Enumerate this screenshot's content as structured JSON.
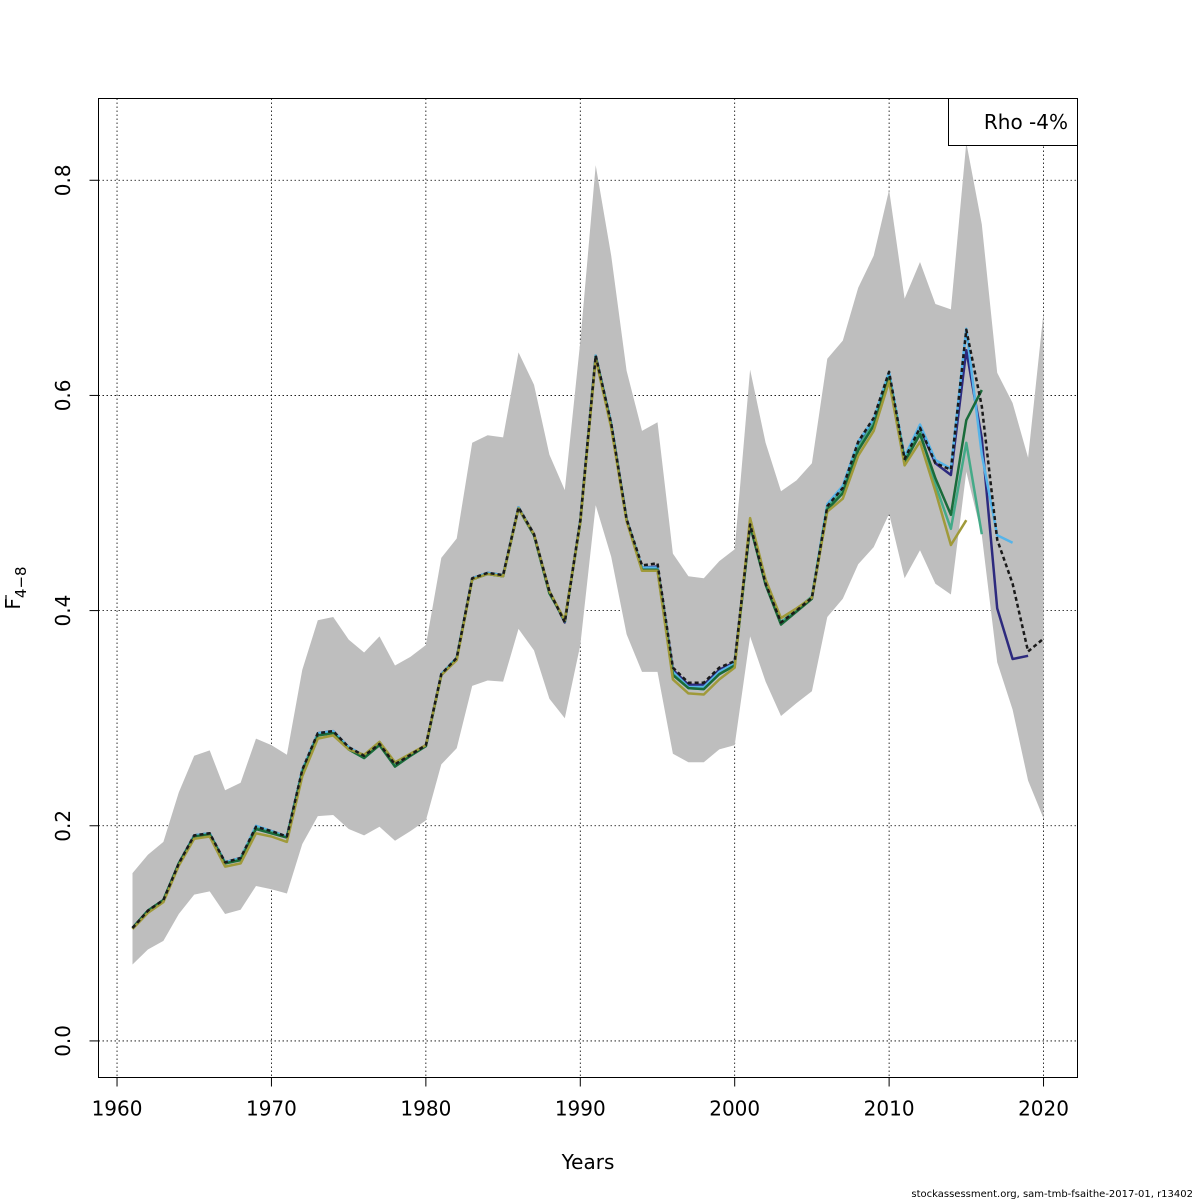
{
  "chart_data": {
    "type": "line",
    "xlabel": "Years",
    "ylabel_main": "F",
    "ylabel_sub": "4−8",
    "xlim": [
      1958.8,
      2022.2
    ],
    "ylim": [
      -0.034,
      0.876
    ],
    "x_ticks": [
      1960,
      1970,
      1980,
      1990,
      2000,
      2010,
      2020
    ],
    "x_tick_labels": [
      "1960",
      "1970",
      "1980",
      "1990",
      "2000",
      "2010",
      "2020"
    ],
    "y_ticks": [
      0.0,
      0.2,
      0.4,
      0.6,
      0.8
    ],
    "y_tick_labels": [
      "0.0",
      "0.2",
      "0.4",
      "0.6",
      "0.8"
    ],
    "grid": true,
    "legend": {
      "position": "top-right",
      "text": "Rho -4%"
    },
    "footer": "stockassessment.org, sam-tmb-fsaithe-2017-01, r13402",
    "confidence_band": {
      "color": "#bebebe",
      "x": [
        1961,
        1962,
        1963,
        1964,
        1965,
        1966,
        1967,
        1968,
        1969,
        1970,
        1971,
        1972,
        1973,
        1974,
        1975,
        1976,
        1977,
        1978,
        1979,
        1980,
        1981,
        1982,
        1983,
        1984,
        1985,
        1986,
        1987,
        1988,
        1989,
        1990,
        1991,
        1992,
        1993,
        1994,
        1995,
        1996,
        1997,
        1998,
        1999,
        2000,
        2001,
        2002,
        2003,
        2004,
        2005,
        2006,
        2007,
        2008,
        2009,
        2010,
        2011,
        2012,
        2013,
        2014,
        2015,
        2016,
        2017,
        2018,
        2019,
        2020
      ],
      "upper": [
        0.156,
        0.173,
        0.185,
        0.231,
        0.265,
        0.27,
        0.233,
        0.24,
        0.281,
        0.275,
        0.266,
        0.345,
        0.391,
        0.394,
        0.373,
        0.361,
        0.376,
        0.349,
        0.357,
        0.368,
        0.449,
        0.467,
        0.556,
        0.563,
        0.561,
        0.64,
        0.61,
        0.545,
        0.512,
        0.65,
        0.814,
        0.73,
        0.623,
        0.567,
        0.575,
        0.453,
        0.432,
        0.43,
        0.446,
        0.457,
        0.624,
        0.556,
        0.511,
        0.521,
        0.537,
        0.634,
        0.651,
        0.7,
        0.73,
        0.791,
        0.69,
        0.724,
        0.685,
        0.68,
        0.835,
        0.759,
        0.621,
        0.593,
        0.542,
        0.677
      ],
      "lower": [
        0.071,
        0.085,
        0.093,
        0.118,
        0.136,
        0.139,
        0.118,
        0.122,
        0.144,
        0.141,
        0.137,
        0.183,
        0.209,
        0.21,
        0.197,
        0.191,
        0.199,
        0.186,
        0.195,
        0.205,
        0.257,
        0.272,
        0.33,
        0.335,
        0.334,
        0.383,
        0.363,
        0.318,
        0.3,
        0.368,
        0.498,
        0.45,
        0.378,
        0.343,
        0.343,
        0.267,
        0.259,
        0.259,
        0.271,
        0.275,
        0.376,
        0.334,
        0.302,
        0.314,
        0.325,
        0.394,
        0.411,
        0.443,
        0.459,
        0.49,
        0.43,
        0.456,
        0.425,
        0.415,
        0.529,
        0.47,
        0.352,
        0.308,
        0.242,
        0.207
      ]
    },
    "series": [
      {
        "color": "#2d2a7e",
        "dash": false,
        "width": 2.5,
        "x": [
          1961,
          1962,
          1963,
          1964,
          1965,
          1966,
          1967,
          1968,
          1969,
          1970,
          1971,
          1972,
          1973,
          1974,
          1975,
          1976,
          1977,
          1978,
          1979,
          1980,
          1981,
          1982,
          1983,
          1984,
          1985,
          1986,
          1987,
          1988,
          1989,
          1990,
          1991,
          1992,
          1993,
          1994,
          1995,
          1996,
          1997,
          1998,
          1999,
          2000,
          2001,
          2002,
          2003,
          2004,
          2005,
          2006,
          2007,
          2008,
          2009,
          2010,
          2011,
          2012,
          2013,
          2014,
          2015,
          2016,
          2017,
          2018,
          2019
        ],
        "y": [
          0.105,
          0.121,
          0.131,
          0.165,
          0.191,
          0.193,
          0.166,
          0.17,
          0.199,
          0.195,
          0.19,
          0.252,
          0.286,
          0.288,
          0.273,
          0.265,
          0.276,
          0.257,
          0.266,
          0.275,
          0.341,
          0.356,
          0.43,
          0.435,
          0.433,
          0.496,
          0.471,
          0.418,
          0.389,
          0.484,
          0.637,
          0.574,
          0.485,
          0.44,
          0.441,
          0.345,
          0.331,
          0.331,
          0.345,
          0.352,
          0.48,
          0.425,
          0.389,
          0.4,
          0.412,
          0.497,
          0.514,
          0.555,
          0.576,
          0.62,
          0.541,
          0.57,
          0.537,
          0.526,
          0.642,
          0.56,
          0.402,
          0.355,
          0.358
        ]
      },
      {
        "color": "#56b4e9",
        "dash": false,
        "width": 2.5,
        "x": [
          1961,
          1962,
          1963,
          1964,
          1965,
          1966,
          1967,
          1968,
          1969,
          1970,
          1971,
          1972,
          1973,
          1974,
          1975,
          1976,
          1977,
          1978,
          1979,
          1980,
          1981,
          1982,
          1983,
          1984,
          1985,
          1986,
          1987,
          1988,
          1989,
          1990,
          1991,
          1992,
          1993,
          1994,
          1995,
          1996,
          1997,
          1998,
          1999,
          2000,
          2001,
          2002,
          2003,
          2004,
          2005,
          2006,
          2007,
          2008,
          2009,
          2010,
          2011,
          2012,
          2013,
          2014,
          2015,
          2016,
          2017,
          2018
        ],
        "y": [
          0.105,
          0.121,
          0.131,
          0.165,
          0.191,
          0.193,
          0.166,
          0.17,
          0.2,
          0.195,
          0.19,
          0.252,
          0.286,
          0.288,
          0.273,
          0.265,
          0.276,
          0.257,
          0.266,
          0.275,
          0.341,
          0.356,
          0.43,
          0.435,
          0.433,
          0.496,
          0.471,
          0.418,
          0.39,
          0.484,
          0.637,
          0.574,
          0.485,
          0.44,
          0.44,
          0.343,
          0.329,
          0.329,
          0.343,
          0.351,
          0.481,
          0.426,
          0.389,
          0.4,
          0.413,
          0.499,
          0.516,
          0.557,
          0.578,
          0.622,
          0.543,
          0.573,
          0.54,
          0.532,
          0.662,
          0.545,
          0.47,
          0.463
        ]
      },
      {
        "color": "#44aa88",
        "dash": false,
        "width": 2.5,
        "x": [
          1961,
          1962,
          1963,
          1964,
          1965,
          1966,
          1967,
          1968,
          1969,
          1970,
          1971,
          1972,
          1973,
          1974,
          1975,
          1976,
          1977,
          1978,
          1979,
          1980,
          1981,
          1982,
          1983,
          1984,
          1985,
          1986,
          1987,
          1988,
          1989,
          1990,
          1991,
          1992,
          1993,
          1994,
          1995,
          1996,
          1997,
          1998,
          1999,
          2000,
          2001,
          2002,
          2003,
          2004,
          2005,
          2006,
          2007,
          2008,
          2009,
          2010,
          2011,
          2012,
          2013,
          2014,
          2015,
          2016
        ],
        "y": [
          0.105,
          0.121,
          0.131,
          0.165,
          0.19,
          0.192,
          0.165,
          0.169,
          0.198,
          0.194,
          0.189,
          0.25,
          0.284,
          0.286,
          0.271,
          0.263,
          0.275,
          0.256,
          0.265,
          0.274,
          0.34,
          0.355,
          0.429,
          0.434,
          0.432,
          0.495,
          0.47,
          0.417,
          0.39,
          0.482,
          0.636,
          0.572,
          0.484,
          0.438,
          0.438,
          0.341,
          0.328,
          0.327,
          0.341,
          0.349,
          0.48,
          0.425,
          0.389,
          0.401,
          0.413,
          0.496,
          0.512,
          0.552,
          0.574,
          0.617,
          0.54,
          0.567,
          0.517,
          0.476,
          0.556,
          0.471
        ]
      },
      {
        "color": "#1a6b3a",
        "dash": false,
        "width": 2.5,
        "x": [
          1961,
          1962,
          1963,
          1964,
          1965,
          1966,
          1967,
          1968,
          1969,
          1970,
          1971,
          1972,
          1973,
          1974,
          1975,
          1976,
          1977,
          1978,
          1979,
          1980,
          1981,
          1982,
          1983,
          1984,
          1985,
          1986,
          1987,
          1988,
          1989,
          1990,
          1991,
          1992,
          1993,
          1994,
          1995,
          1996,
          1997,
          1998,
          1999,
          2000,
          2001,
          2002,
          2003,
          2004,
          2005,
          2006,
          2007,
          2008,
          2009,
          2010,
          2011,
          2012,
          2013,
          2014,
          2015,
          2016
        ],
        "y": [
          0.105,
          0.121,
          0.131,
          0.165,
          0.19,
          0.192,
          0.165,
          0.168,
          0.197,
          0.193,
          0.189,
          0.25,
          0.284,
          0.286,
          0.271,
          0.263,
          0.275,
          0.255,
          0.265,
          0.274,
          0.34,
          0.355,
          0.429,
          0.434,
          0.432,
          0.495,
          0.47,
          0.416,
          0.391,
          0.482,
          0.636,
          0.572,
          0.484,
          0.438,
          0.438,
          0.34,
          0.328,
          0.327,
          0.341,
          0.349,
          0.479,
          0.424,
          0.387,
          0.399,
          0.411,
          0.494,
          0.509,
          0.549,
          0.572,
          0.616,
          0.538,
          0.564,
          0.523,
          0.489,
          0.577,
          0.605
        ]
      },
      {
        "color": "#a09a3a",
        "dash": false,
        "width": 2.5,
        "x": [
          1961,
          1962,
          1963,
          1964,
          1965,
          1966,
          1967,
          1968,
          1969,
          1970,
          1971,
          1972,
          1973,
          1974,
          1975,
          1976,
          1977,
          1978,
          1979,
          1980,
          1981,
          1982,
          1983,
          1984,
          1985,
          1986,
          1987,
          1988,
          1989,
          1990,
          1991,
          1992,
          1993,
          1994,
          1995,
          1996,
          1997,
          1998,
          1999,
          2000,
          2001,
          2002,
          2003,
          2004,
          2005,
          2006,
          2007,
          2008,
          2009,
          2010,
          2011,
          2012,
          2013,
          2014,
          2015
        ],
        "y": [
          0.104,
          0.119,
          0.129,
          0.163,
          0.188,
          0.19,
          0.162,
          0.165,
          0.193,
          0.19,
          0.185,
          0.246,
          0.281,
          0.284,
          0.271,
          0.266,
          0.278,
          0.259,
          0.267,
          0.275,
          0.34,
          0.354,
          0.429,
          0.434,
          0.432,
          0.495,
          0.471,
          0.418,
          0.391,
          0.482,
          0.634,
          0.57,
          0.483,
          0.437,
          0.437,
          0.336,
          0.323,
          0.322,
          0.336,
          0.347,
          0.486,
          0.429,
          0.393,
          0.402,
          0.412,
          0.492,
          0.504,
          0.544,
          0.567,
          0.613,
          0.535,
          0.557,
          0.511,
          0.461,
          0.484
        ]
      },
      {
        "color": "#1a1a1a",
        "dash": true,
        "width": 2.5,
        "x": [
          1961,
          1962,
          1963,
          1964,
          1965,
          1966,
          1967,
          1968,
          1969,
          1970,
          1971,
          1972,
          1973,
          1974,
          1975,
          1976,
          1977,
          1978,
          1979,
          1980,
          1981,
          1982,
          1983,
          1984,
          1985,
          1986,
          1987,
          1988,
          1989,
          1990,
          1991,
          1992,
          1993,
          1994,
          1995,
          1996,
          1997,
          1998,
          1999,
          2000,
          2001,
          2002,
          2003,
          2004,
          2005,
          2006,
          2007,
          2008,
          2009,
          2010,
          2011,
          2012,
          2013,
          2014,
          2015,
          2016,
          2017,
          2018,
          2019,
          2020
        ],
        "y": [
          0.105,
          0.121,
          0.131,
          0.165,
          0.191,
          0.193,
          0.166,
          0.17,
          0.199,
          0.195,
          0.19,
          0.252,
          0.286,
          0.288,
          0.273,
          0.265,
          0.276,
          0.257,
          0.266,
          0.275,
          0.341,
          0.356,
          0.43,
          0.435,
          0.433,
          0.496,
          0.471,
          0.418,
          0.389,
          0.484,
          0.637,
          0.574,
          0.485,
          0.442,
          0.444,
          0.347,
          0.333,
          0.333,
          0.347,
          0.353,
          0.48,
          0.425,
          0.389,
          0.4,
          0.412,
          0.497,
          0.514,
          0.557,
          0.579,
          0.622,
          0.541,
          0.57,
          0.537,
          0.531,
          0.661,
          0.59,
          0.466,
          0.425,
          0.362,
          0.374
        ]
      }
    ]
  }
}
